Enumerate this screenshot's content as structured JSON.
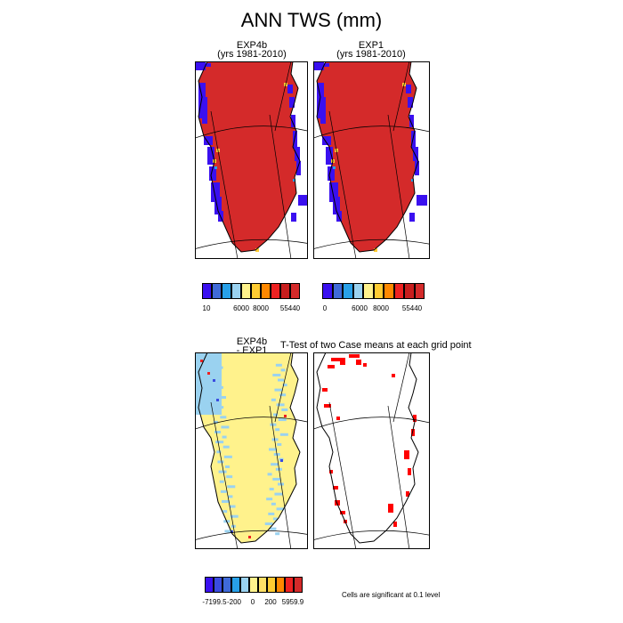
{
  "figure": {
    "title": "ANN TWS (mm)"
  },
  "panels": {
    "exp4b": {
      "title": "EXP4b",
      "subtitle": "(yrs 1981-2010)"
    },
    "exp1": {
      "title": "EXP1",
      "subtitle": "(yrs 1981-2010)"
    },
    "diff": {
      "title": "EXP4b",
      "subtitle": "- EXP1"
    },
    "ttest": {
      "title": "T-Test of two Case means at each grid point"
    }
  },
  "colorbars": {
    "exp4b": {
      "colors": [
        "#3a10f0",
        "#3f6ad8",
        "#28a0e8",
        "#9ad2f0",
        "#fff28c",
        "#ffcc33",
        "#ff8800",
        "#ee2222",
        "#c81e1e",
        "#d42a2a"
      ],
      "labels": [
        "10",
        "6000",
        "8000",
        "55440"
      ]
    },
    "exp1": {
      "colors": [
        "#3a10f0",
        "#3f6ad8",
        "#28a0e8",
        "#9ad2f0",
        "#fff28c",
        "#ffcc33",
        "#ff8800",
        "#ee2222",
        "#c81e1e",
        "#d42a2a"
      ],
      "labels": [
        "0",
        "6000",
        "8000",
        "55440"
      ]
    },
    "diff": {
      "colors": [
        "#3a10f0",
        "#3a4ce0",
        "#3f6ad8",
        "#28a0e8",
        "#9ad2f0",
        "#fff28c",
        "#ffe066",
        "#ffcc33",
        "#ff8800",
        "#ee2222",
        "#d42a2a"
      ],
      "labels": [
        "-7199.5",
        "-200",
        "0",
        "200",
        "5959.9"
      ]
    }
  },
  "significance_note": "Cells are significant at 0.1 level",
  "chart_data": [
    {
      "type": "heatmap",
      "panel": "EXP4b",
      "dominant_color": "#d42a2a",
      "colorbar_labels": [
        "10",
        "6000",
        "8000",
        "55440"
      ]
    },
    {
      "type": "heatmap",
      "panel": "EXP1",
      "dominant_color": "#d42a2a",
      "colorbar_labels": [
        "0",
        "6000",
        "8000",
        "55440"
      ]
    },
    {
      "type": "heatmap",
      "panel": "EXP4b - EXP1",
      "dominant_color": "#fff28c",
      "colorbar_labels": [
        "-7199.5",
        "-200",
        "0",
        "200",
        "5959.9"
      ]
    },
    {
      "type": "heatmap",
      "panel": "T-Test",
      "significant_color": "#ff0000"
    }
  ]
}
